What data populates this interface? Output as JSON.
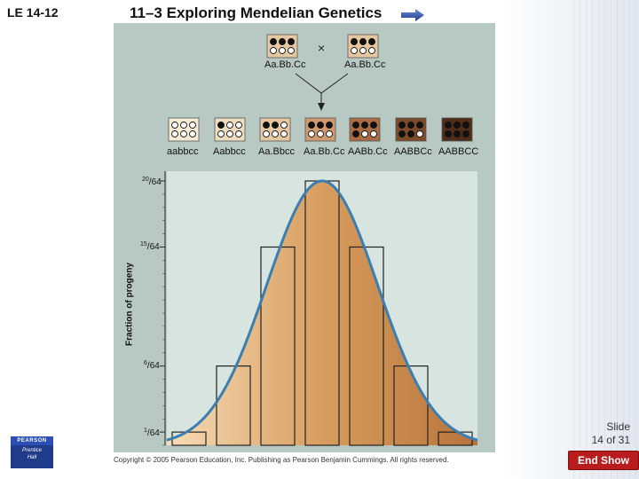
{
  "header": {
    "slide_label": "LE 14-12",
    "title": "11–3 Exploring Mendelian Genetics",
    "next_icon": "arrow-right-icon"
  },
  "figure": {
    "parent_left": "Aa.Bb.Cc",
    "parent_right": "Aa.Bb.Cc",
    "cross_symbol": "×",
    "offspring_genotypes": [
      "aabbcc",
      "Aabbcc",
      "Aa.Bbcc",
      "Aa.Bb.Cc",
      "AABb.Cc",
      "AABBCc",
      "AABBCC"
    ]
  },
  "chart_data": {
    "type": "bar",
    "categories": [
      "aabbcc",
      "Aabbcc",
      "Aa.Bbcc",
      "Aa.Bb.Cc",
      "AABb.Cc",
      "AABBCc",
      "AABBCC"
    ],
    "values": [
      1,
      6,
      15,
      20,
      15,
      6,
      1
    ],
    "ylabel": "Fraction of progeny",
    "y_ticks": [
      {
        "num": "20",
        "den": "64",
        "value": 20
      },
      {
        "num": "15",
        "den": "64",
        "value": 15
      },
      {
        "num": "6",
        "den": "64",
        "value": 6
      },
      {
        "num": "1",
        "den": "64",
        "value": 1
      }
    ],
    "ylim": [
      0,
      20
    ],
    "overlay_curve": "normal-distribution",
    "colors": {
      "curve": "#3a7fb0",
      "bar_fill_light": "#f6d9b3",
      "bar_fill_dark": "#d49a5c",
      "bar_outline": "#222222",
      "panel_bg": "#b8c9c3"
    }
  },
  "footer": {
    "copyright": "Copyright © 2005 Pearson Education, Inc. Publishing as Pearson Benjamin Cummings. All rights reserved.",
    "slide_line1": "Slide",
    "slide_line2": "14 of 31",
    "end_show": "End Show",
    "logo_top": "PEARSON",
    "logo_line1": "Prentice",
    "logo_line2": "Hall"
  }
}
